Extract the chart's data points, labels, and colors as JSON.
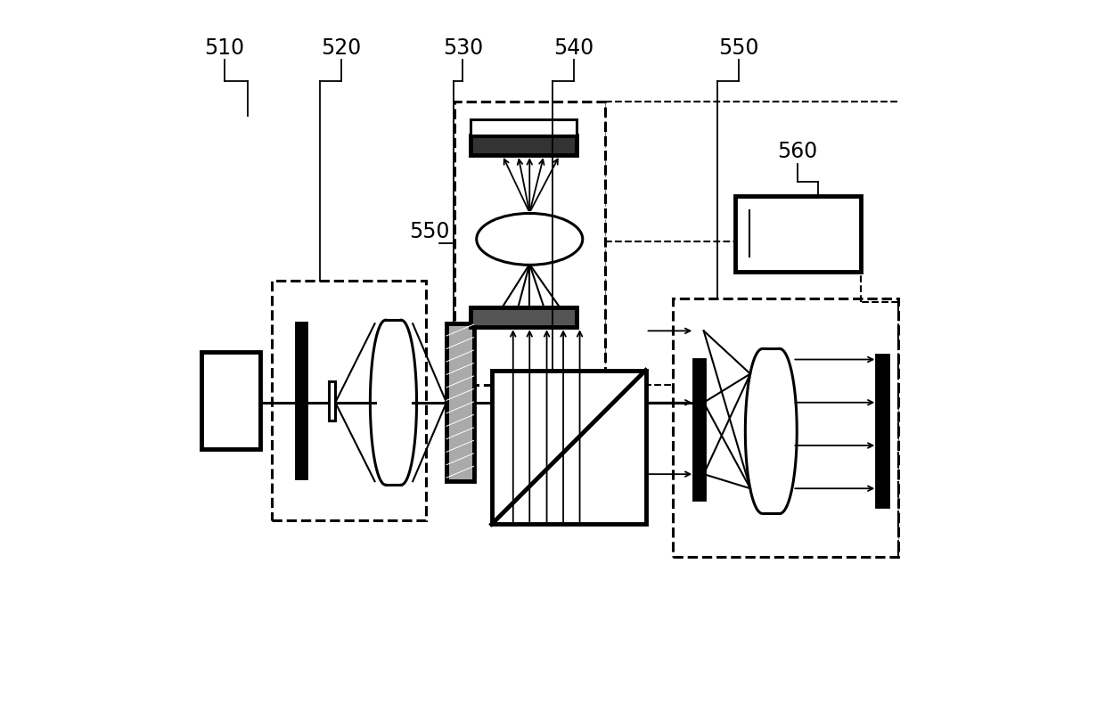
{
  "bg_color": "#ffffff",
  "line_color": "#000000",
  "fig_width": 12.4,
  "fig_height": 8.07
}
